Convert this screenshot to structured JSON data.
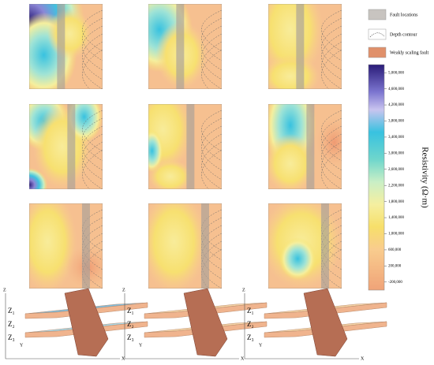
{
  "legend": {
    "items": [
      "Fault locations",
      "Depth contour",
      "Weakly scaling fault"
    ]
  },
  "colorbar": {
    "title": "Resistivity (Ω·m)",
    "lim": [
      -400000,
      5200000
    ],
    "ticks": [
      {
        "value": 5000000,
        "label": "5,000,000"
      },
      {
        "value": 4600000,
        "label": "4,600,000"
      },
      {
        "value": 4200000,
        "label": "4,200,000"
      },
      {
        "value": 3800000,
        "label": "3,800,000"
      },
      {
        "value": 3400000,
        "label": "3,400,000"
      },
      {
        "value": 3000000,
        "label": "3,000,000"
      },
      {
        "value": 2600000,
        "label": "2,600,000"
      },
      {
        "value": 2200000,
        "label": "2,200,000"
      },
      {
        "value": 1800000,
        "label": "1,800,000"
      },
      {
        "value": 1400000,
        "label": "1,400,000"
      },
      {
        "value": 1000000,
        "label": "1,000,000"
      },
      {
        "value": 600000,
        "label": "600,000"
      },
      {
        "value": 200000,
        "label": "200,000"
      },
      {
        "value": -200000,
        "label": "-200,000"
      }
    ]
  },
  "blocks": {
    "layer_labels": [
      "Z₁",
      "Z₂",
      "Z₃"
    ],
    "axes": [
      "X",
      "Y",
      "Z"
    ]
  }
}
